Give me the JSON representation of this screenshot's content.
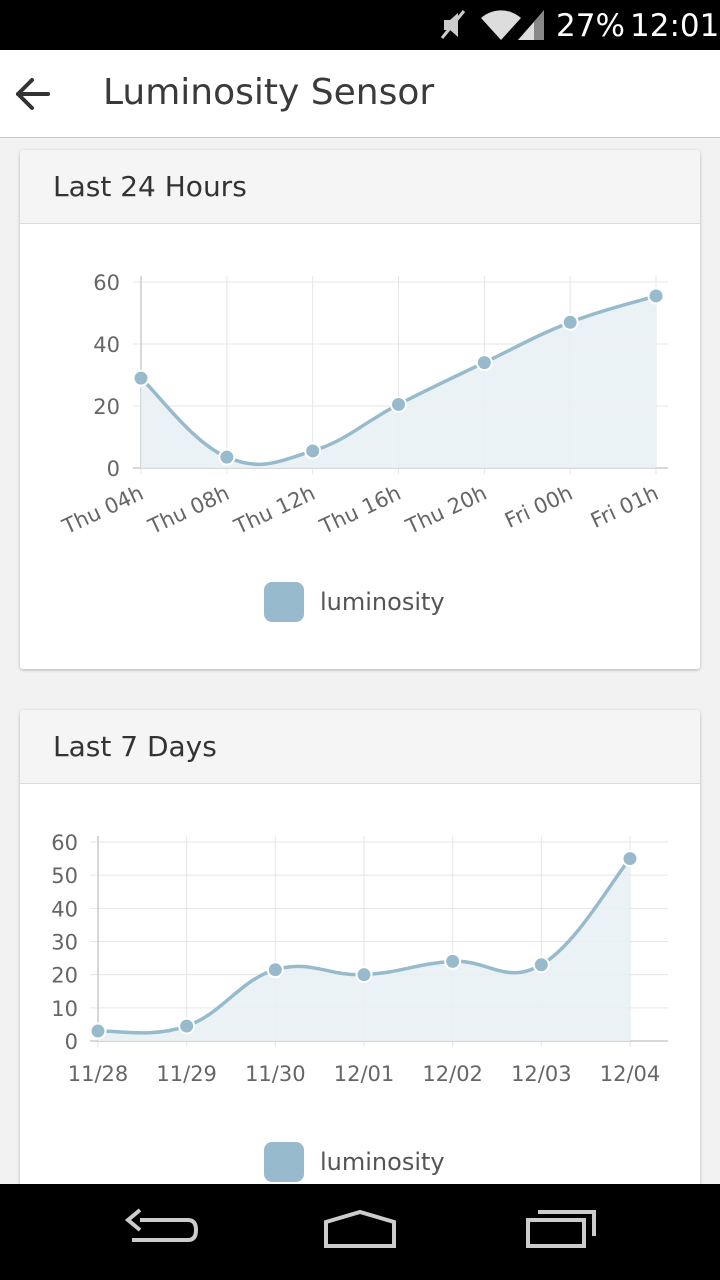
{
  "status_bar": {
    "battery_percent": "27%",
    "time": "12:01",
    "icons": [
      "mute-icon",
      "wifi-icon",
      "cell-signal-icon"
    ]
  },
  "app_bar": {
    "title": "Luminosity Sensor",
    "back_icon": "arrow-left-icon"
  },
  "colors": {
    "series_line": "#97bbcd",
    "series_fill": "#e8f0f5",
    "grid": "#e6e6e6",
    "axis_text": "#666666"
  },
  "cards": [
    {
      "title": "Last 24 Hours",
      "legend_label": "luminosity"
    },
    {
      "title": "Last 7 Days",
      "legend_label": "luminosity"
    }
  ],
  "chart_data": [
    {
      "type": "area",
      "categories": [
        "Thu 04h",
        "Thu 08h",
        "Thu 12h",
        "Thu 16h",
        "Thu 20h",
        "Fri 00h",
        "Fri 01h"
      ],
      "series": [
        {
          "name": "luminosity",
          "values": [
            29,
            3.5,
            5.5,
            20.5,
            34,
            47,
            55.5
          ]
        }
      ],
      "yticks": [
        0,
        20,
        40,
        60
      ],
      "ylim": [
        0,
        60
      ],
      "grid": true,
      "legend": "bottom-center"
    },
    {
      "type": "area",
      "categories": [
        "11/28",
        "11/29",
        "11/30",
        "12/01",
        "12/02",
        "12/03",
        "12/04"
      ],
      "series": [
        {
          "name": "luminosity",
          "values": [
            3,
            4.5,
            21.5,
            20,
            24,
            23,
            55
          ]
        }
      ],
      "yticks": [
        0,
        10,
        20,
        30,
        40,
        50,
        60
      ],
      "ylim": [
        0,
        60
      ],
      "grid": true,
      "legend": "bottom-center"
    }
  ]
}
